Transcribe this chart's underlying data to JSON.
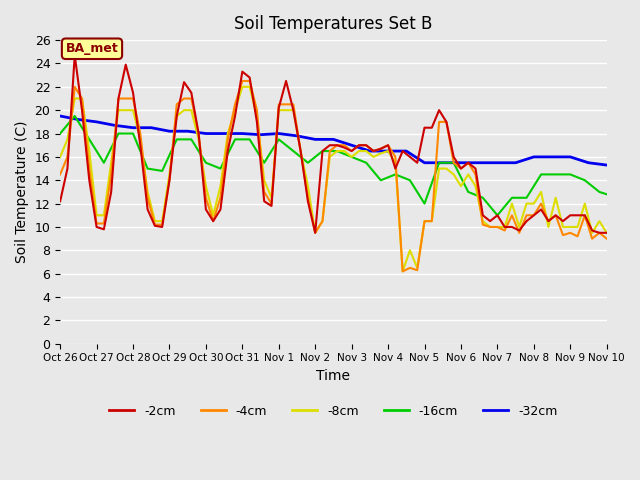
{
  "title": "Soil Temperatures Set B",
  "xlabel": "Time",
  "ylabel": "Soil Temperature (C)",
  "background_color": "#e8e8e8",
  "plot_bg_color": "#e8e8e8",
  "ylim": [
    0,
    26
  ],
  "yticks": [
    0,
    2,
    4,
    6,
    8,
    10,
    12,
    14,
    16,
    18,
    20,
    22,
    24,
    26
  ],
  "legend_label": "BA_met",
  "x_tick_labels": [
    "Oct 26",
    "Oct 27",
    "Oct 28",
    "Oct 29",
    "Oct 30",
    "Oct 31",
    "Nov 1",
    "Nov 2",
    "Nov 3",
    "Nov 4",
    "Nov 5",
    "Nov 6",
    "Nov 7",
    "Nov 8",
    "Nov 9",
    "Nov 10"
  ],
  "series": {
    "neg2cm": {
      "color": "#cc0000",
      "label": "-2cm",
      "lw": 1.5
    },
    "neg4cm": {
      "color": "#ff8800",
      "label": "-4cm",
      "lw": 1.5
    },
    "neg8cm": {
      "color": "#dddd00",
      "label": "-8cm",
      "lw": 1.5
    },
    "neg16cm": {
      "color": "#00cc00",
      "label": "-16cm",
      "lw": 1.5
    },
    "neg32cm": {
      "color": "#0000ee",
      "label": "-32cm",
      "lw": 2.0
    }
  },
  "neg2cm_x": [
    0,
    0.2,
    0.4,
    0.6,
    0.8,
    1.0,
    1.2,
    1.4,
    1.6,
    1.8,
    2.0,
    2.2,
    2.4,
    2.6,
    2.8,
    3.0,
    3.2,
    3.4,
    3.6,
    3.8,
    4.0,
    4.2,
    4.4,
    4.6,
    4.8,
    5.0,
    5.2,
    5.4,
    5.6,
    5.8,
    6.0,
    6.2,
    6.4,
    6.6,
    6.8,
    7.0,
    7.2,
    7.4,
    7.6,
    7.8,
    8.0,
    8.2,
    8.4,
    8.6,
    8.8,
    9.0,
    9.2,
    9.4,
    9.6,
    9.8,
    10.0,
    10.2,
    10.4,
    10.6,
    10.8,
    11.0,
    11.2,
    11.4,
    11.6,
    11.8,
    12.0,
    12.2,
    12.4,
    12.6,
    12.8,
    13.0,
    13.2,
    13.4,
    13.6,
    13.8,
    14.0,
    14.2,
    14.4,
    14.6,
    14.8,
    15.0
  ],
  "neg2cm_y": [
    12.2,
    15.0,
    24.7,
    20.0,
    14.0,
    10.0,
    9.8,
    13.0,
    21.0,
    23.9,
    21.5,
    17.0,
    11.5,
    10.1,
    10.0,
    14.0,
    19.5,
    22.4,
    21.5,
    18.0,
    11.5,
    10.5,
    11.5,
    16.5,
    19.5,
    23.3,
    22.8,
    19.0,
    12.2,
    11.8,
    20.2,
    22.5,
    20.0,
    16.5,
    12.2,
    9.5,
    16.5,
    17.0,
    17.0,
    16.8,
    16.5,
    17.0,
    17.0,
    16.5,
    16.7,
    17.0,
    15.0,
    16.5,
    16.0,
    15.5,
    18.5,
    18.5,
    20.0,
    19.0,
    16.0,
    15.0,
    15.5,
    15.0,
    11.0,
    10.5,
    11.0,
    10.0,
    10.0,
    9.7,
    10.5,
    11.0,
    11.5,
    10.5,
    11.0,
    10.5,
    11.0,
    11.0,
    11.0,
    9.7,
    9.5,
    9.5
  ],
  "neg4cm_x": [
    0,
    0.2,
    0.4,
    0.6,
    0.8,
    1.0,
    1.2,
    1.4,
    1.6,
    1.8,
    2.0,
    2.2,
    2.4,
    2.6,
    2.8,
    3.0,
    3.2,
    3.4,
    3.6,
    3.8,
    4.0,
    4.2,
    4.4,
    4.6,
    4.8,
    5.0,
    5.2,
    5.4,
    5.6,
    5.8,
    6.0,
    6.2,
    6.4,
    6.6,
    6.8,
    7.0,
    7.2,
    7.4,
    7.6,
    7.8,
    8.0,
    8.2,
    8.4,
    8.6,
    8.8,
    9.0,
    9.2,
    9.4,
    9.6,
    9.8,
    10.0,
    10.2,
    10.4,
    10.6,
    10.8,
    11.0,
    11.2,
    11.4,
    11.6,
    11.8,
    12.0,
    12.2,
    12.4,
    12.6,
    12.8,
    13.0,
    13.2,
    13.4,
    13.6,
    13.8,
    14.0,
    14.2,
    14.4,
    14.6,
    14.8,
    15.0
  ],
  "neg4cm_y": [
    14.5,
    16.0,
    22.0,
    21.0,
    15.0,
    10.3,
    10.3,
    14.5,
    21.0,
    21.0,
    21.0,
    18.0,
    12.5,
    10.2,
    10.2,
    14.0,
    20.5,
    21.0,
    21.0,
    18.0,
    12.5,
    10.5,
    12.5,
    17.5,
    20.5,
    22.5,
    22.5,
    20.0,
    13.0,
    12.0,
    20.5,
    20.5,
    20.5,
    16.5,
    12.5,
    9.5,
    10.5,
    16.5,
    17.0,
    17.0,
    16.5,
    17.0,
    17.0,
    16.5,
    16.7,
    17.0,
    16.0,
    6.2,
    6.5,
    6.3,
    10.5,
    10.5,
    19.0,
    19.0,
    15.5,
    15.0,
    15.5,
    14.5,
    10.2,
    10.0,
    10.0,
    9.7,
    11.0,
    9.5,
    11.0,
    11.0,
    12.0,
    10.5,
    11.0,
    9.3,
    9.5,
    9.2,
    11.0,
    9.0,
    9.5,
    9.0
  ],
  "neg8cm_x": [
    0,
    0.2,
    0.4,
    0.6,
    0.8,
    1.0,
    1.2,
    1.4,
    1.6,
    1.8,
    2.0,
    2.2,
    2.4,
    2.6,
    2.8,
    3.0,
    3.2,
    3.4,
    3.6,
    3.8,
    4.0,
    4.2,
    4.4,
    4.6,
    4.8,
    5.0,
    5.2,
    5.4,
    5.6,
    5.8,
    6.0,
    6.2,
    6.4,
    6.6,
    6.8,
    7.0,
    7.2,
    7.4,
    7.6,
    7.8,
    8.0,
    8.2,
    8.4,
    8.6,
    8.8,
    9.0,
    9.2,
    9.4,
    9.6,
    9.8,
    10.0,
    10.2,
    10.4,
    10.6,
    10.8,
    11.0,
    11.2,
    11.4,
    11.6,
    11.8,
    12.0,
    12.2,
    12.4,
    12.6,
    12.8,
    13.0,
    13.2,
    13.4,
    13.6,
    13.8,
    14.0,
    14.2,
    14.4,
    14.6,
    14.8,
    15.0
  ],
  "neg8cm_y": [
    16.0,
    17.5,
    21.0,
    21.0,
    16.5,
    11.0,
    11.0,
    15.5,
    20.0,
    20.0,
    20.0,
    17.5,
    13.0,
    10.5,
    10.5,
    14.5,
    19.5,
    20.0,
    20.0,
    17.5,
    13.5,
    11.0,
    13.5,
    18.0,
    20.0,
    22.0,
    22.0,
    19.5,
    14.0,
    12.5,
    20.0,
    20.0,
    20.0,
    16.5,
    13.5,
    9.5,
    10.5,
    16.0,
    16.5,
    16.5,
    16.0,
    16.5,
    16.5,
    16.0,
    16.3,
    16.5,
    15.5,
    6.2,
    8.0,
    6.5,
    10.5,
    10.5,
    15.0,
    15.0,
    14.5,
    13.5,
    14.5,
    13.5,
    10.5,
    10.0,
    10.0,
    10.0,
    12.0,
    10.0,
    12.0,
    12.0,
    13.0,
    10.0,
    12.5,
    10.0,
    10.0,
    10.0,
    12.0,
    9.5,
    10.5,
    9.5
  ],
  "neg16cm_x": [
    0,
    0.4,
    0.8,
    1.2,
    1.6,
    2.0,
    2.4,
    2.8,
    3.2,
    3.6,
    4.0,
    4.4,
    4.8,
    5.2,
    5.6,
    6.0,
    6.4,
    6.8,
    7.2,
    7.6,
    8.0,
    8.4,
    8.8,
    9.2,
    9.6,
    10.0,
    10.4,
    10.8,
    11.2,
    11.6,
    12.0,
    12.4,
    12.8,
    13.2,
    13.6,
    14.0,
    14.4,
    14.8,
    15.0
  ],
  "neg16cm_y": [
    18.0,
    19.5,
    17.5,
    15.5,
    18.0,
    18.0,
    15.0,
    14.8,
    17.5,
    17.5,
    15.5,
    15.0,
    17.5,
    17.5,
    15.5,
    17.5,
    16.5,
    15.5,
    16.5,
    16.5,
    16.0,
    15.5,
    14.0,
    14.5,
    14.0,
    12.0,
    15.5,
    15.5,
    13.0,
    12.5,
    11.0,
    12.5,
    12.5,
    14.5,
    14.5,
    14.5,
    14.0,
    13.0,
    12.8
  ],
  "neg32cm_x": [
    0,
    0.5,
    1.0,
    1.5,
    2.0,
    2.5,
    3.0,
    3.5,
    4.0,
    4.5,
    5.0,
    5.5,
    6.0,
    6.5,
    7.0,
    7.5,
    8.0,
    8.5,
    9.0,
    9.5,
    10.0,
    10.5,
    11.0,
    11.5,
    12.0,
    12.5,
    13.0,
    13.5,
    14.0,
    14.5,
    15.0
  ],
  "neg32cm_y": [
    19.5,
    19.2,
    19.0,
    18.7,
    18.5,
    18.5,
    18.2,
    18.2,
    18.0,
    18.0,
    18.0,
    17.9,
    18.0,
    17.8,
    17.5,
    17.5,
    17.0,
    16.5,
    16.5,
    16.5,
    15.5,
    15.5,
    15.5,
    15.5,
    15.5,
    15.5,
    16.0,
    16.0,
    16.0,
    15.5,
    15.3
  ]
}
